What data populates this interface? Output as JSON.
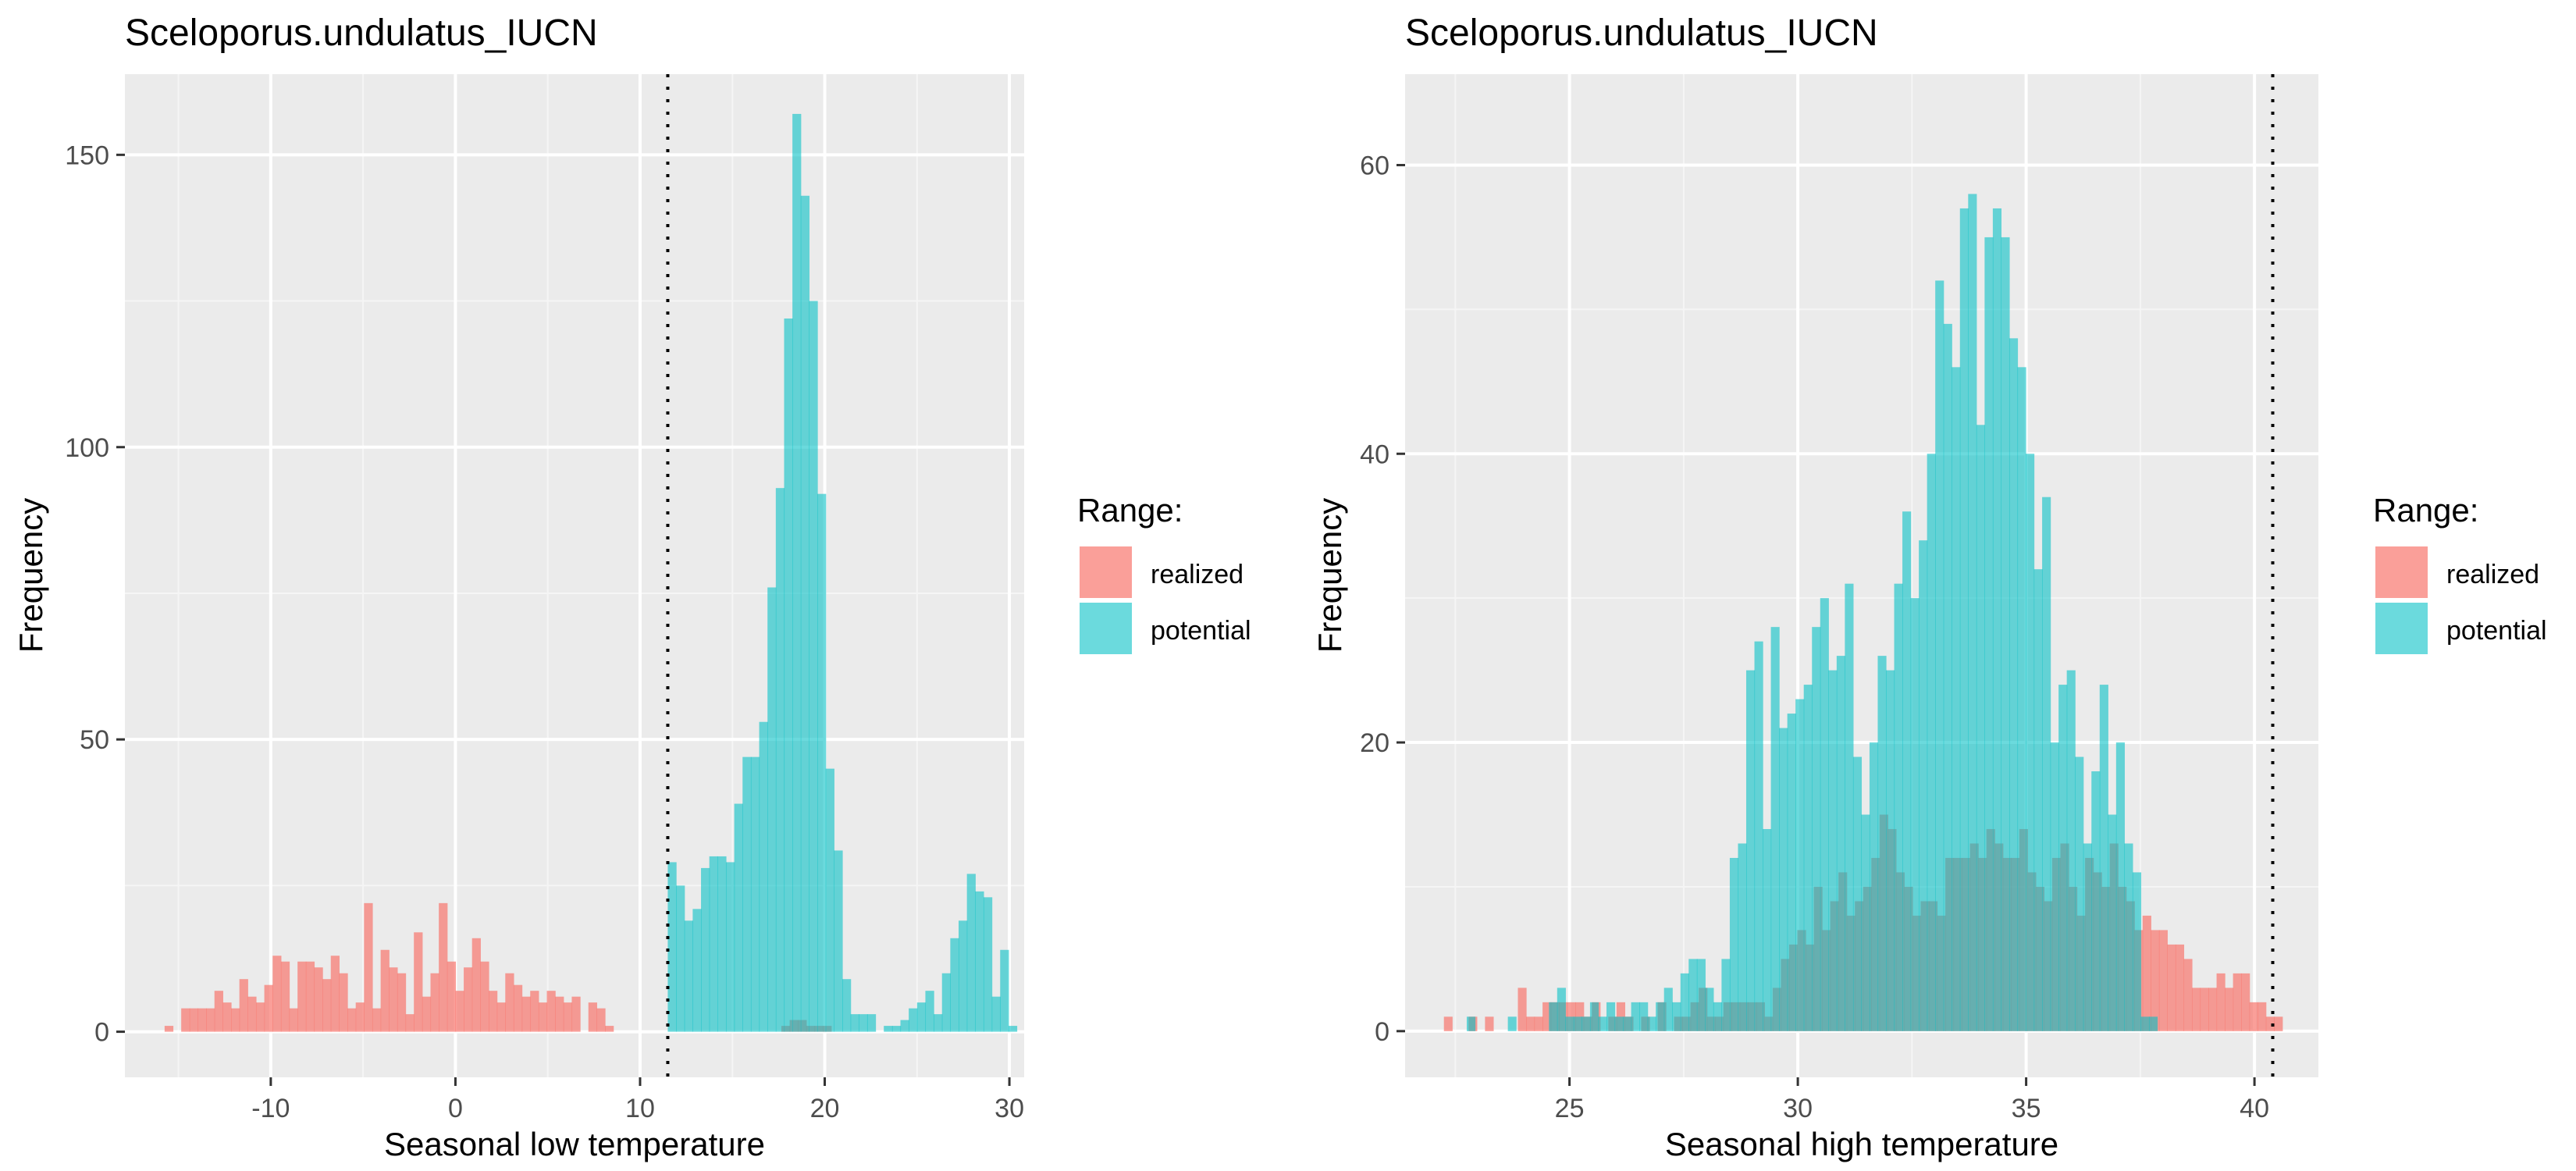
{
  "legend": {
    "title": "Range:",
    "items": [
      {
        "label": "realized",
        "color": "#F8766D"
      },
      {
        "label": "potential",
        "color": "#00BFC4"
      }
    ]
  },
  "chart_data": [
    {
      "type": "bar",
      "subtype": "histogram",
      "title": "Sceloporus.undulatus_IUCN",
      "xlabel": "Seasonal low temperature",
      "ylabel": "Frequency",
      "xlim": [
        -17.9,
        30.8
      ],
      "ylim": [
        -7.8,
        163.8
      ],
      "xticks": [
        -10,
        0,
        10,
        20,
        30
      ],
      "yticks": [
        0,
        50,
        100,
        150
      ],
      "grid": true,
      "legend_position": "right",
      "bin_width": 0.45,
      "vline": 11.5,
      "series": [
        {
          "name": "realized",
          "color": "#F8766D",
          "start": -15.75,
          "values": [
            1,
            0,
            4,
            4,
            4,
            4,
            7,
            5,
            4,
            9,
            6,
            5,
            8,
            13,
            12,
            4,
            12,
            12,
            11,
            9,
            13,
            10,
            4,
            5,
            22,
            4,
            14,
            11,
            10,
            3,
            17,
            6,
            10,
            22,
            12,
            7,
            11,
            16,
            12,
            7,
            5,
            10,
            8,
            6,
            7,
            5,
            7,
            6,
            5,
            6,
            0,
            5,
            4,
            1
          ]
        },
        {
          "name": "realized",
          "color": "#F8766D",
          "start": 17.65,
          "values": [
            1,
            2,
            2,
            1,
            1,
            1,
            0
          ]
        },
        {
          "name": "potential",
          "color": "#00BFC4",
          "start": 11.5,
          "values": [
            29,
            25,
            19,
            21,
            28,
            30,
            30,
            29,
            39,
            47,
            47,
            53,
            76,
            93,
            122,
            157,
            143,
            125,
            92,
            45,
            31,
            9,
            3,
            3,
            3,
            0,
            1,
            1,
            2,
            4,
            5,
            7,
            3,
            10,
            16,
            19,
            27,
            24,
            23,
            6,
            14,
            1
          ]
        }
      ]
    },
    {
      "type": "bar",
      "subtype": "histogram",
      "title": "Sceloporus.undulatus_IUCN",
      "xlabel": "Seasonal high temperature",
      "ylabel": "Frequency",
      "xlim": [
        21.4,
        41.4
      ],
      "ylim": [
        -3.2,
        66.3
      ],
      "xticks": [
        25,
        30,
        35,
        40
      ],
      "yticks": [
        0,
        20,
        40,
        60
      ],
      "grid": true,
      "legend_position": "right",
      "bin_width": 0.18,
      "vline": 40.4,
      "series": [
        {
          "name": "realized",
          "color": "#F8766D",
          "start": 22.25,
          "values": [
            1,
            0,
            0,
            1,
            0,
            1,
            0,
            0,
            0,
            3,
            1,
            1,
            2,
            2,
            2,
            2,
            2,
            1,
            2,
            0,
            1,
            2,
            1,
            0,
            1,
            0,
            2,
            0,
            1,
            1,
            2,
            3,
            1,
            1,
            2,
            2,
            2,
            2,
            2,
            1,
            3,
            5,
            6,
            7,
            6,
            10,
            7,
            9,
            11,
            8,
            9,
            10,
            12,
            15,
            14,
            11,
            10,
            8,
            9,
            9,
            8,
            12,
            12,
            12,
            13,
            12,
            14,
            13,
            12,
            12,
            14,
            11,
            10,
            9,
            12,
            13,
            10,
            8,
            12,
            11,
            10,
            13,
            10,
            9,
            7,
            8,
            7,
            7,
            6,
            6,
            5,
            3,
            3,
            3,
            4,
            3,
            4,
            4,
            2,
            2,
            1,
            1
          ]
        },
        {
          "name": "potential",
          "color": "#00BFC4",
          "start": 22.75,
          "values": [
            1,
            0,
            0,
            0,
            0,
            1,
            0,
            0,
            0,
            0,
            2,
            3,
            1,
            1,
            1,
            2,
            1,
            2,
            1,
            1,
            2,
            2,
            1,
            2,
            3,
            2,
            4,
            5,
            5,
            3,
            2,
            5,
            12,
            13,
            25,
            27,
            14,
            28,
            21,
            22,
            23,
            24,
            28,
            30,
            25,
            26,
            31,
            19,
            15,
            20,
            26,
            25,
            31,
            36,
            30,
            34,
            40,
            52,
            49,
            46,
            57,
            58,
            42,
            55,
            57,
            55,
            48,
            46,
            40,
            32,
            37,
            20,
            24,
            25,
            19,
            13,
            18,
            24,
            15,
            20,
            13,
            11,
            1,
            1
          ]
        }
      ]
    }
  ]
}
